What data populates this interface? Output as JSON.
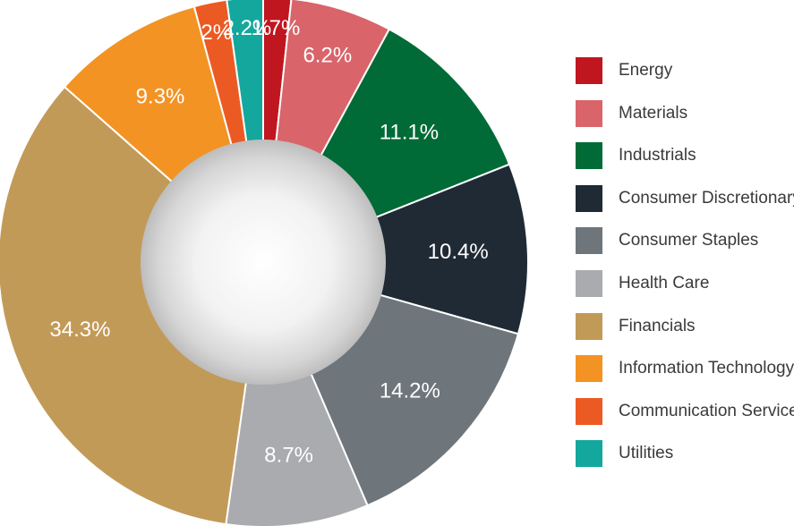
{
  "chart_data": {
    "type": "pie",
    "title": "",
    "categories": [
      "Energy",
      "Materials",
      "Industrials",
      "Consumer Discretionary",
      "Consumer Staples",
      "Health Care",
      "Financials",
      "Information Technology",
      "Communication Services",
      "Utilities"
    ],
    "values": [
      1.7,
      6.2,
      11.1,
      10.4,
      14.2,
      8.7,
      34.3,
      9.3,
      2.0,
      2.2
    ],
    "labels": [
      "1.7%",
      "6.2%",
      "11.1%",
      "10.4%",
      "14.2%",
      "8.7%",
      "34.3%",
      "9.3%",
      "2%",
      "2.2%"
    ],
    "colors": [
      "#c0161f",
      "#d9646a",
      "#006b36",
      "#1f2a35",
      "#6e767c",
      "#a9abae",
      "#c29a58",
      "#f39323",
      "#ec5a24",
      "#14a79d"
    ],
    "donut": true,
    "legend_position": "right"
  }
}
